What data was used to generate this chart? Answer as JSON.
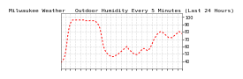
{
  "title": "Milwaukee Weather   Outdoor Humidity Every 5 Minutes (Last 24 Hours)",
  "background_color": "#ffffff",
  "plot_background": "#ffffff",
  "grid_color": "#bbbbbb",
  "line_color": "#ff0000",
  "ylim": [
    30,
    105
  ],
  "yticks": [
    40,
    50,
    60,
    70,
    80,
    90,
    100
  ],
  "ytick_labels": [
    "40",
    "50",
    "60",
    "70",
    "80",
    "90",
    "100"
  ],
  "x_values": [
    0,
    1,
    2,
    3,
    4,
    5,
    6,
    7,
    8,
    9,
    10,
    11,
    12,
    13,
    14,
    15,
    16,
    17,
    18,
    19,
    20,
    21,
    22,
    23,
    24,
    25,
    26,
    27,
    28,
    29,
    30,
    31,
    32,
    33,
    34,
    35,
    36,
    37,
    38,
    39,
    40,
    41,
    42,
    43,
    44,
    45,
    46,
    47,
    48,
    49,
    50,
    51,
    52,
    53,
    54,
    55,
    56,
    57,
    58,
    59,
    60,
    61,
    62,
    63,
    64,
    65,
    66,
    67,
    68,
    69,
    70,
    71,
    72,
    73,
    74,
    75,
    76,
    77,
    78,
    79,
    80,
    81,
    82,
    83,
    84,
    85,
    86,
    87,
    88,
    89,
    90,
    91,
    92,
    93,
    94,
    95,
    96,
    97,
    98,
    99,
    100,
    101,
    102,
    103,
    104,
    105,
    106,
    107,
    108,
    109,
    110,
    111,
    112,
    113,
    114,
    115,
    116,
    117,
    118,
    119,
    120,
    121,
    122,
    123,
    124,
    125,
    126,
    127,
    128,
    129,
    130,
    131,
    132,
    133,
    134,
    135,
    136,
    137,
    138,
    139,
    140,
    141,
    142,
    143
  ],
  "y_values": [
    38,
    39,
    40,
    42,
    44,
    48,
    54,
    62,
    72,
    80,
    86,
    90,
    93,
    95,
    96,
    96,
    96,
    96,
    96,
    96,
    96,
    96,
    96,
    96,
    96,
    96,
    96,
    96,
    95,
    95,
    95,
    95,
    95,
    95,
    95,
    95,
    95,
    95,
    95,
    95,
    95,
    94,
    93,
    92,
    90,
    88,
    85,
    80,
    74,
    68,
    62,
    58,
    55,
    53,
    51,
    50,
    49,
    48,
    47,
    47,
    46,
    46,
    46,
    47,
    47,
    48,
    48,
    49,
    50,
    51,
    52,
    53,
    54,
    55,
    56,
    57,
    58,
    59,
    60,
    58,
    56,
    55,
    54,
    53,
    52,
    51,
    50,
    49,
    49,
    49,
    49,
    50,
    51,
    52,
    53,
    55,
    57,
    57,
    57,
    57,
    56,
    55,
    54,
    55,
    56,
    58,
    60,
    62,
    65,
    68,
    70,
    72,
    74,
    76,
    77,
    78,
    79,
    80,
    80,
    80,
    79,
    78,
    77,
    76,
    75,
    74,
    73,
    72,
    72,
    72,
    72,
    72,
    73,
    74,
    75,
    76,
    77,
    78,
    79,
    80,
    80,
    79,
    78,
    77
  ],
  "num_xticks": 25,
  "title_fontsize": 4.5,
  "tick_fontsize": 3.5,
  "linewidth": 0.7,
  "dash_on": 2,
  "dash_off": 2
}
